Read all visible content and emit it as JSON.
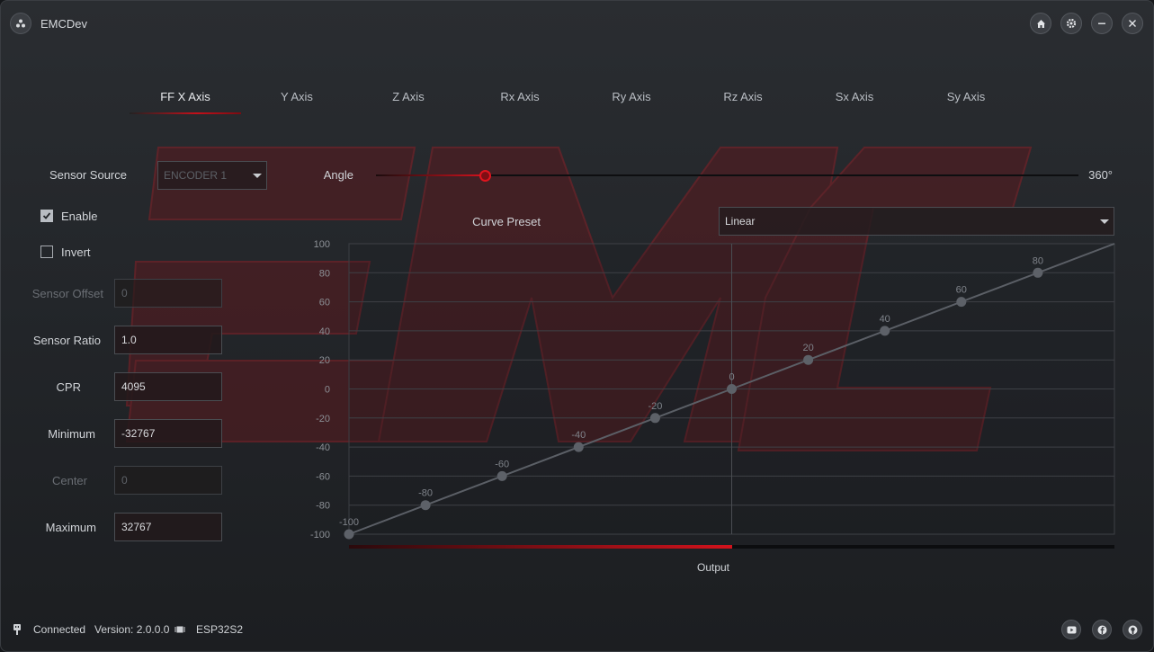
{
  "app": {
    "title": "EMCDev"
  },
  "titlebar": {
    "home_icon": "home-icon",
    "settings_icon": "gear-icon",
    "minimize_icon": "minimize-icon",
    "close_icon": "close-icon"
  },
  "tabs": [
    {
      "label": "FF X Axis",
      "active": true
    },
    {
      "label": "Y Axis"
    },
    {
      "label": "Z Axis"
    },
    {
      "label": "Rx Axis"
    },
    {
      "label": "Ry Axis"
    },
    {
      "label": "Rz Axis"
    },
    {
      "label": "Sx Axis"
    },
    {
      "label": "Sy Axis"
    }
  ],
  "sensor": {
    "source_label": "Sensor Source",
    "source_value": "ENCODER 1",
    "angle_label": "Angle",
    "angle_max": "360°",
    "angle_fraction": 0.155,
    "enable_label": "Enable",
    "enable_checked": true,
    "invert_label": "Invert",
    "invert_checked": false
  },
  "fields": {
    "offset_label": "Sensor Offset",
    "offset_value": "0",
    "ratio_label": "Sensor Ratio",
    "ratio_value": "1.0",
    "cpr_label": "CPR",
    "cpr_value": "4095",
    "min_label": "Minimum",
    "min_value": "-32767",
    "center_label": "Center",
    "center_value": "0",
    "max_label": "Maximum",
    "max_value": "32767"
  },
  "curve": {
    "preset_label": "Curve Preset",
    "preset_value": "Linear",
    "output_label": "Output",
    "output_fraction": 0.5
  },
  "chart_data": {
    "type": "line",
    "x": [
      -100,
      -80,
      -60,
      -40,
      -20,
      0,
      20,
      40,
      60,
      80,
      100
    ],
    "y": [
      -100,
      -80,
      -60,
      -40,
      -20,
      0,
      20,
      40,
      60,
      80,
      100
    ],
    "point_labels": [
      "-100",
      "-80",
      "-60",
      "-40",
      "-20",
      "0",
      "20",
      "40",
      "60",
      "80",
      ""
    ],
    "y_ticks": [
      "100",
      "80",
      "60",
      "40",
      "20",
      "0",
      "-20",
      "-40",
      "-60",
      "-80",
      "-100"
    ],
    "ylim": [
      -100,
      100
    ],
    "xlim": [
      -100,
      100
    ],
    "grid": true,
    "line_color": "#5b5f66"
  },
  "status": {
    "connection": "Connected",
    "version": "Version: 2.0.0.0",
    "chip": "ESP32S2",
    "youtube_icon": "youtube-icon",
    "facebook_icon": "facebook-icon",
    "github_icon": "github-icon"
  },
  "colors": {
    "accent": "#d3121c",
    "background": "#23262a"
  }
}
